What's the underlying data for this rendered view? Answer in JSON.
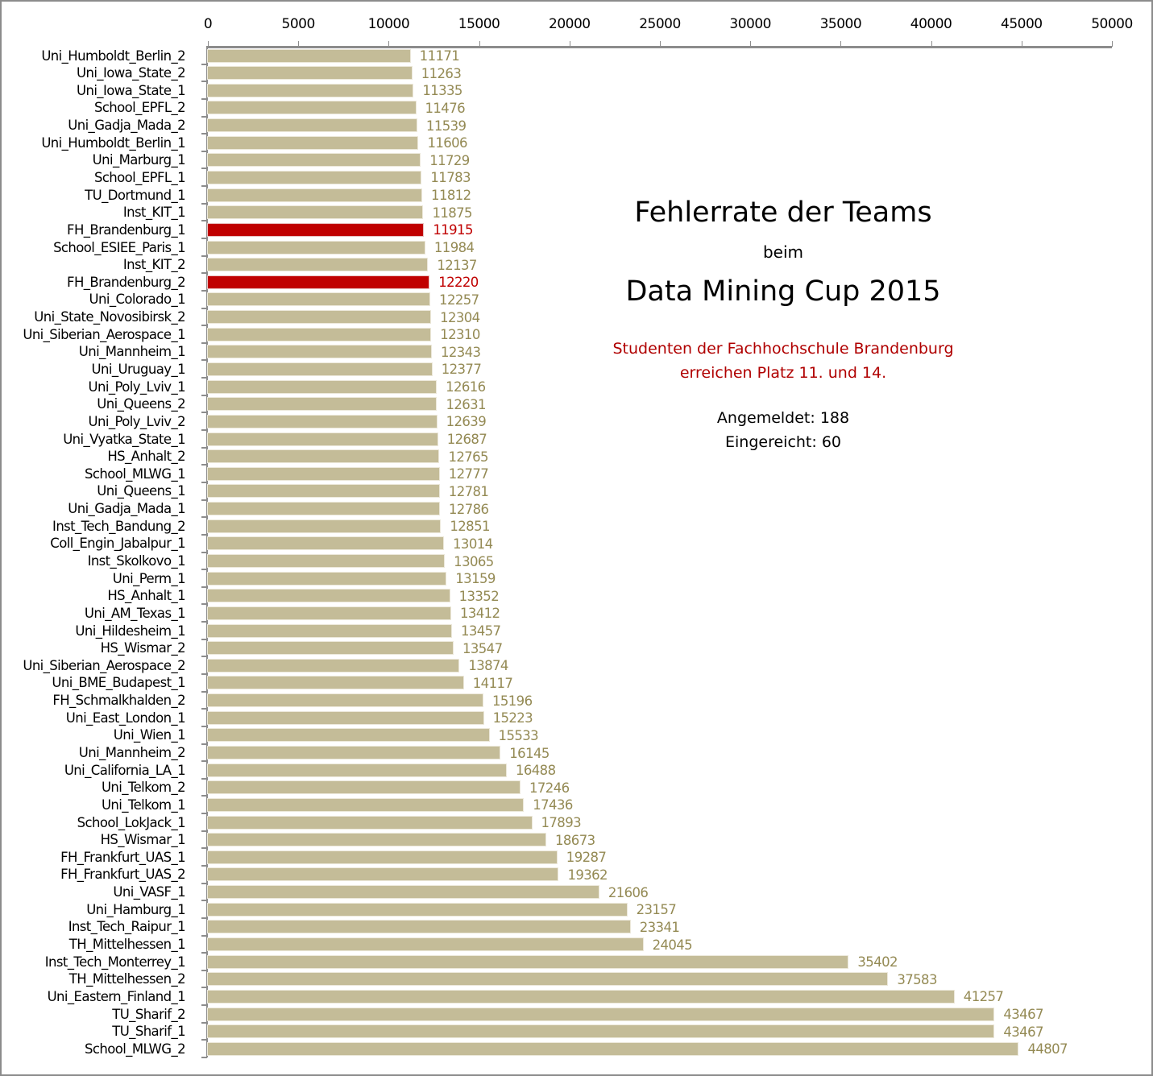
{
  "chart_data": {
    "type": "bar",
    "orientation": "horizontal",
    "title": "Fehlerrate der Teams beim Data Mining Cup 2015",
    "xlabel": "",
    "ylabel": "",
    "xlim": [
      0,
      50000
    ],
    "x_ticks": [
      0,
      5000,
      10000,
      15000,
      20000,
      25000,
      30000,
      35000,
      40000,
      45000,
      50000
    ],
    "x_axis_position": "top",
    "grid": false,
    "legend": null,
    "bar_color": "#c4bc98",
    "highlight_color": "#c00000",
    "value_label_color": "#948a54",
    "categories": [
      "Uni_Humboldt_Berlin_2",
      "Uni_Iowa_State_2",
      "Uni_Iowa_State_1",
      "School_EPFL_2",
      "Uni_Gadja_Mada_2",
      "Uni_Humboldt_Berlin_1",
      "Uni_Marburg_1",
      "School_EPFL_1",
      "TU_Dortmund_1",
      "Inst_KIT_1",
      "FH_Brandenburg_1",
      "School_ESIEE_Paris_1",
      "Inst_KIT_2",
      "FH_Brandenburg_2",
      "Uni_Colorado_1",
      "Uni_State_Novosibirsk_2",
      "Uni_Siberian_Aerospace_1",
      "Uni_Mannheim_1",
      "Uni_Uruguay_1",
      "Uni_Poly_Lviv_1",
      "Uni_Queens_2",
      "Uni_Poly_Lviv_2",
      "Uni_Vyatka_State_1",
      "HS_Anhalt_2",
      "School_MLWG_1",
      "Uni_Queens_1",
      "Uni_Gadja_Mada_1",
      "Inst_Tech_Bandung_2",
      "Coll_Engin_Jabalpur_1",
      "Inst_Skolkovo_1",
      "Uni_Perm_1",
      "HS_Anhalt_1",
      "Uni_AM_Texas_1",
      "Uni_Hildesheim_1",
      "HS_Wismar_2",
      "Uni_Siberian_Aerospace_2",
      "Uni_BME_Budapest_1",
      "FH_Schmalkhalden_2",
      "Uni_East_London_1",
      "Uni_Wien_1",
      "Uni_Mannheim_2",
      "Uni_California_LA_1",
      "Uni_Telkom_2",
      "Uni_Telkom_1",
      "School_LokJack_1",
      "HS_Wismar_1",
      "FH_Frankfurt_UAS_1",
      "FH_Frankfurt_UAS_2",
      "Uni_VASF_1",
      "Uni_Hamburg_1",
      "Inst_Tech_Raipur_1",
      "TH_Mittelhessen_1",
      "Inst_Tech_Monterrey_1",
      "TH_Mittelhessen_2",
      "Uni_Eastern_Finland_1",
      "TU_Sharif_2",
      "TU_Sharif_1",
      "School_MLWG_2"
    ],
    "values": [
      11171,
      11263,
      11335,
      11476,
      11539,
      11606,
      11729,
      11783,
      11812,
      11875,
      11915,
      11984,
      12137,
      12220,
      12257,
      12304,
      12310,
      12343,
      12377,
      12616,
      12631,
      12639,
      12687,
      12765,
      12777,
      12781,
      12786,
      12851,
      13014,
      13065,
      13159,
      13352,
      13412,
      13457,
      13547,
      13874,
      14117,
      15196,
      15223,
      15533,
      16145,
      16488,
      17246,
      17436,
      17893,
      18673,
      19287,
      19362,
      21606,
      23157,
      23341,
      24045,
      35402,
      37583,
      41257,
      43467,
      43467,
      44807
    ],
    "highlighted": [
      "FH_Brandenburg_1",
      "FH_Brandenburg_2"
    ],
    "annotations": [
      "Fehlerrate der Teams",
      "beim",
      "Data Mining Cup 2015",
      "Studenten der Fachhochschule Brandenburg",
      "erreichen Platz 11. und 14.",
      "Angemeldet: 188",
      "Eingereicht: 60"
    ]
  },
  "title_block": {
    "line1": "Fehlerrate der Teams",
    "line2": "beim",
    "line3": "Data Mining Cup 2015",
    "highlight_line1": "Studenten der Fachhochschule Brandenburg",
    "highlight_line2": "erreichen Platz 11. und 14.",
    "registered": "Angemeldet: 188",
    "submitted": "Eingereicht: 60"
  }
}
